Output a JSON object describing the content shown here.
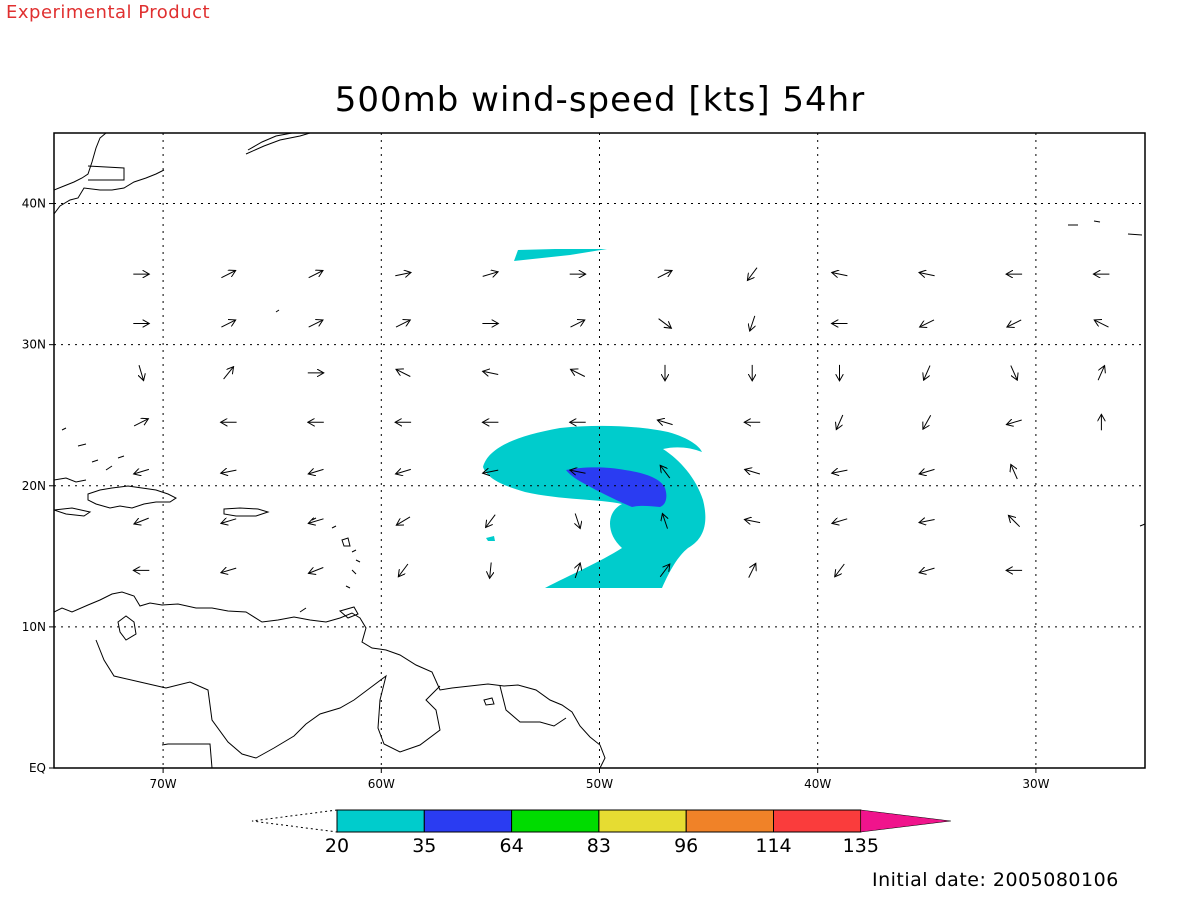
{
  "banner": "Experimental Product",
  "title": "500mb wind-speed [kts] 54hr",
  "initial_date": "Initial date: 2005080106",
  "map": {
    "lon_range": [
      -75,
      -25
    ],
    "lat_range": [
      0,
      45
    ],
    "lon_ticks": [
      {
        "lon": -70,
        "label": "70W"
      },
      {
        "lon": -60,
        "label": "60W"
      },
      {
        "lon": -50,
        "label": "50W"
      },
      {
        "lon": -40,
        "label": "40W"
      },
      {
        "lon": -30,
        "label": "30W"
      }
    ],
    "lat_ticks": [
      {
        "lat": 0,
        "label": "EQ"
      },
      {
        "lat": 10,
        "label": "10N"
      },
      {
        "lat": 20,
        "label": "20N"
      },
      {
        "lat": 30,
        "label": "30N"
      },
      {
        "lat": 40,
        "label": "40N"
      }
    ],
    "grid": true,
    "coast_color": "#000000"
  },
  "colorbar": {
    "labels": [
      "20",
      "35",
      "64",
      "83",
      "96",
      "114",
      "135"
    ],
    "colors": [
      "#00cccc",
      "#2a3cf2",
      "#00dc00",
      "#e6dc32",
      "#f08228",
      "#fa3c3c",
      "#f0148c"
    ]
  },
  "wind_field": {
    "lons": [
      -71,
      -67,
      -63,
      -59,
      -55,
      -51,
      -47,
      -43,
      -39,
      -35,
      -31,
      -27
    ],
    "lats": [
      35,
      31.5,
      28,
      24.5,
      21,
      17.5,
      14
    ],
    "u": [
      [
        1,
        1,
        1,
        1,
        1,
        1,
        1,
        -0.6,
        -1,
        -1,
        -1,
        -1
      ],
      [
        1,
        1,
        1,
        1,
        1,
        1,
        0.8,
        -0.3,
        -1,
        -1,
        -1,
        -1
      ],
      [
        0.3,
        0.8,
        1,
        -1,
        -1,
        -1,
        0,
        0,
        0,
        -0.4,
        0.4,
        0.4
      ],
      [
        1,
        -1,
        -1,
        -1,
        -1,
        -1,
        -1,
        -1,
        -0.4,
        -0.5,
        -1,
        0
      ],
      [
        -1,
        -1,
        -1,
        -1,
        -1,
        -1,
        -0.6,
        -1,
        -1,
        -1,
        -0.4,
        null
      ],
      [
        -1,
        -1,
        -1,
        -1,
        -0.6,
        0.3,
        -0.3,
        -1,
        -1,
        -1,
        -0.7,
        null
      ],
      [
        -1,
        -1,
        -1,
        -0.6,
        -0.1,
        0.3,
        0.6,
        0.4,
        -0.6,
        -1,
        -1,
        null
      ]
    ],
    "v": [
      [
        0,
        0.5,
        0.5,
        0.2,
        0.3,
        0,
        0.5,
        -0.8,
        0.2,
        0.2,
        0,
        0
      ],
      [
        0,
        0.5,
        0.5,
        0.5,
        0,
        0.5,
        -0.6,
        -0.9,
        0,
        -0.5,
        -0.5,
        0.5
      ],
      [
        -1,
        1,
        0,
        0.5,
        0.2,
        0.5,
        -1,
        -1,
        -1,
        -0.9,
        -0.9,
        0.9
      ],
      [
        0.5,
        0,
        0,
        0,
        0,
        0,
        0.3,
        0,
        -0.9,
        -0.9,
        -0.3,
        1
      ],
      [
        -0.3,
        -0.2,
        -0.3,
        -0.3,
        -0.2,
        0.2,
        0.8,
        0.3,
        -0.2,
        -0.3,
        0.9,
        null
      ],
      [
        -0.4,
        -0.3,
        -0.3,
        -0.6,
        -0.8,
        -0.9,
        0.9,
        0.2,
        -0.3,
        -0.2,
        0.7,
        null
      ],
      [
        0,
        -0.3,
        -0.4,
        -0.8,
        -1,
        0.9,
        0.8,
        0.8,
        -0.8,
        -0.3,
        0,
        null
      ]
    ]
  }
}
